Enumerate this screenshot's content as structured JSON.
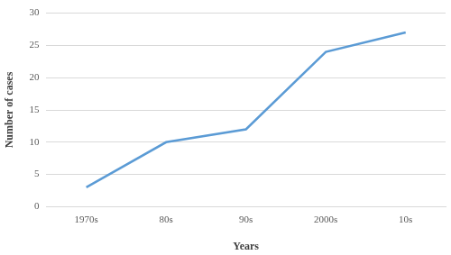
{
  "chart_data": {
    "type": "line",
    "xlabel": "Years",
    "ylabel": "Number of cases",
    "categories": [
      "1970s",
      "80s",
      "90s",
      "2000s",
      "10s"
    ],
    "values": [
      3,
      10,
      12,
      24,
      27
    ],
    "color": "#5b9bd5",
    "ylim": [
      0,
      30
    ],
    "yticks": [
      0,
      5,
      10,
      15,
      20,
      25,
      30
    ],
    "grid": true
  }
}
